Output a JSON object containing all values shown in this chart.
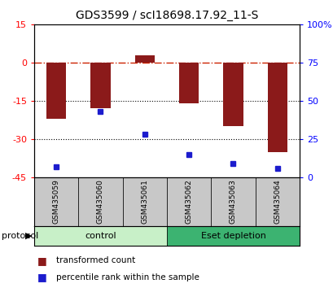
{
  "title": "GDS3599 / scI18698.17.92_11-S",
  "categories": [
    "GSM435059",
    "GSM435060",
    "GSM435061",
    "GSM435062",
    "GSM435063",
    "GSM435064"
  ],
  "red_values": [
    -22,
    -18,
    3,
    -16,
    -25,
    -35
  ],
  "blue_values": [
    7,
    43,
    28,
    15,
    9,
    6
  ],
  "ylim_left": [
    -45,
    15
  ],
  "ylim_right": [
    0,
    100
  ],
  "yticks_left": [
    -45,
    -30,
    -15,
    0,
    15
  ],
  "yticks_right": [
    0,
    25,
    50,
    75,
    100
  ],
  "ytick_labels_left": [
    "-45",
    "-30",
    "-15",
    "0",
    "15"
  ],
  "ytick_labels_right": [
    "0",
    "25",
    "50",
    "75",
    "100%"
  ],
  "bar_color": "#8B1A1A",
  "dot_color": "#1C1CCD",
  "zero_line_color": "#CC2200",
  "control_color": "#C8F0C8",
  "eset_color": "#3CB371",
  "label_bg_color": "#C8C8C8",
  "protocol_groups": [
    {
      "label": "control",
      "indices": [
        0,
        1,
        2
      ],
      "color": "#C8F0C8"
    },
    {
      "label": "Eset depletion",
      "indices": [
        3,
        4,
        5
      ],
      "color": "#3CB371"
    }
  ],
  "legend_red_label": "transformed count",
  "legend_blue_label": "percentile rank within the sample",
  "bar_width": 0.45
}
